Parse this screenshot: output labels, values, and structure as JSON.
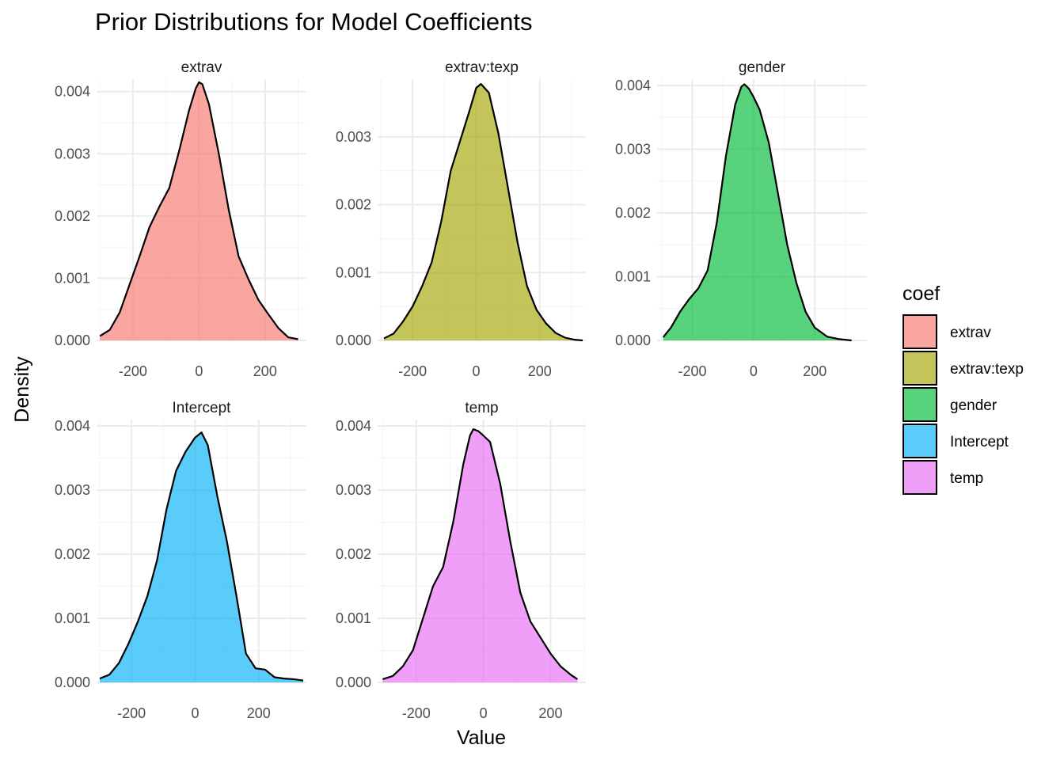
{
  "chart_data": {
    "type": "area",
    "title": "Prior Distributions for Model Coefficients",
    "xlabel": "Value",
    "ylabel": "Density",
    "legend": {
      "title": "coef",
      "placement": "right"
    },
    "grid": true,
    "panels": [
      {
        "name": "extrav",
        "color": "#F8766D",
        "xlim": [
          -310,
          325
        ],
        "ylim": [
          0,
          0.0042
        ],
        "xticks": [
          -200,
          0,
          200
        ],
        "xtick_labels": [
          "-200",
          "0",
          "200"
        ],
        "yticks": [
          0,
          0.001,
          0.002,
          0.003,
          0.004
        ],
        "ytick_labels": [
          "0.000",
          "0.001",
          "0.002",
          "0.003",
          "0.004"
        ],
        "x": [
          -300,
          -270,
          -240,
          -210,
          -180,
          -150,
          -120,
          -90,
          -60,
          -30,
          -10,
          0,
          10,
          30,
          60,
          90,
          120,
          150,
          180,
          210,
          240,
          270,
          300
        ],
        "y": [
          7e-05,
          0.00017,
          0.00045,
          0.0009,
          0.00135,
          0.00182,
          0.00215,
          0.00245,
          0.00305,
          0.0037,
          0.00405,
          0.00415,
          0.00412,
          0.0038,
          0.003,
          0.0021,
          0.00135,
          0.00098,
          0.00065,
          0.00042,
          0.0002,
          5e-05,
          2e-05
        ]
      },
      {
        "name": "extrav:texp",
        "color": "#A3A500",
        "xlim": [
          -310,
          345
        ],
        "ylim": [
          0,
          0.00385
        ],
        "xticks": [
          -200,
          0,
          200
        ],
        "xtick_labels": [
          "-200",
          "0",
          "200"
        ],
        "yticks": [
          0,
          0.001,
          0.002,
          0.003
        ],
        "ytick_labels": [
          "0.000",
          "0.001",
          "0.002",
          "0.003"
        ],
        "x": [
          -290,
          -260,
          -230,
          -200,
          -170,
          -140,
          -110,
          -80,
          -50,
          -20,
          0,
          15,
          40,
          70,
          100,
          130,
          160,
          190,
          220,
          250,
          280,
          310,
          335
        ],
        "y": [
          3e-05,
          0.0001,
          0.00028,
          0.0005,
          0.0008,
          0.00115,
          0.00175,
          0.0025,
          0.00295,
          0.0034,
          0.00372,
          0.00378,
          0.00365,
          0.00305,
          0.00225,
          0.00145,
          0.0008,
          0.00045,
          0.00025,
          0.00011,
          4e-05,
          1e-05,
          0
        ]
      },
      {
        "name": "gender",
        "color": "#00BA38",
        "xlim": [
          -315,
          370
        ],
        "ylim": [
          0,
          0.0041
        ],
        "xticks": [
          -200,
          0,
          200
        ],
        "xtick_labels": [
          "-200",
          "0",
          "200"
        ],
        "yticks": [
          0,
          0.001,
          0.002,
          0.003,
          0.004
        ],
        "ytick_labels": [
          "0.000",
          "0.001",
          "0.002",
          "0.003",
          "0.004"
        ],
        "x": [
          -295,
          -270,
          -240,
          -210,
          -180,
          -150,
          -120,
          -90,
          -60,
          -40,
          -30,
          -15,
          0,
          20,
          50,
          80,
          110,
          140,
          170,
          200,
          240,
          280,
          320
        ],
        "y": [
          5e-05,
          0.0002,
          0.00045,
          0.00065,
          0.00082,
          0.0011,
          0.00185,
          0.0029,
          0.0037,
          0.00398,
          0.00402,
          0.00395,
          0.00382,
          0.00362,
          0.0031,
          0.0023,
          0.0015,
          0.0009,
          0.00045,
          0.0002,
          6e-05,
          2e-05,
          0
        ]
      },
      {
        "name": "Intercept",
        "color": "#00B0F6",
        "xlim": [
          -310,
          350
        ],
        "ylim": [
          0,
          0.0041
        ],
        "xticks": [
          -200,
          0,
          200
        ],
        "xtick_labels": [
          "-200",
          "0",
          "200"
        ],
        "yticks": [
          0,
          0.001,
          0.002,
          0.003,
          0.004
        ],
        "ytick_labels": [
          "0.000",
          "0.001",
          "0.002",
          "0.003",
          "0.004"
        ],
        "x": [
          -300,
          -270,
          -240,
          -210,
          -180,
          -150,
          -120,
          -90,
          -60,
          -30,
          0,
          20,
          40,
          70,
          100,
          130,
          160,
          190,
          220,
          250,
          280,
          310,
          340
        ],
        "y": [
          6e-05,
          0.00012,
          0.0003,
          0.0006,
          0.00095,
          0.00135,
          0.0019,
          0.0027,
          0.0033,
          0.0036,
          0.00382,
          0.0039,
          0.0037,
          0.0029,
          0.0022,
          0.00135,
          0.00045,
          0.00022,
          0.0002,
          8e-05,
          6e-05,
          5e-05,
          3e-05
        ]
      },
      {
        "name": "temp",
        "color": "#E76BF3",
        "xlim": [
          -315,
          305
        ],
        "ylim": [
          0,
          0.0041
        ],
        "xticks": [
          -200,
          0,
          200
        ],
        "xtick_labels": [
          "-200",
          "0",
          "200"
        ],
        "yticks": [
          0,
          0.001,
          0.002,
          0.003,
          0.004
        ],
        "ytick_labels": [
          "0.000",
          "0.001",
          "0.002",
          "0.003",
          "0.004"
        ],
        "x": [
          -300,
          -270,
          -240,
          -210,
          -180,
          -150,
          -120,
          -90,
          -60,
          -40,
          -30,
          -15,
          0,
          20,
          50,
          80,
          110,
          140,
          170,
          200,
          230,
          260,
          280
        ],
        "y": [
          5e-05,
          0.0001,
          0.00025,
          0.0005,
          0.001,
          0.0015,
          0.0018,
          0.0025,
          0.0034,
          0.00385,
          0.00395,
          0.00392,
          0.00385,
          0.00375,
          0.0031,
          0.0022,
          0.0014,
          0.00095,
          0.0007,
          0.00045,
          0.00025,
          0.00012,
          5e-05
        ]
      }
    ]
  }
}
